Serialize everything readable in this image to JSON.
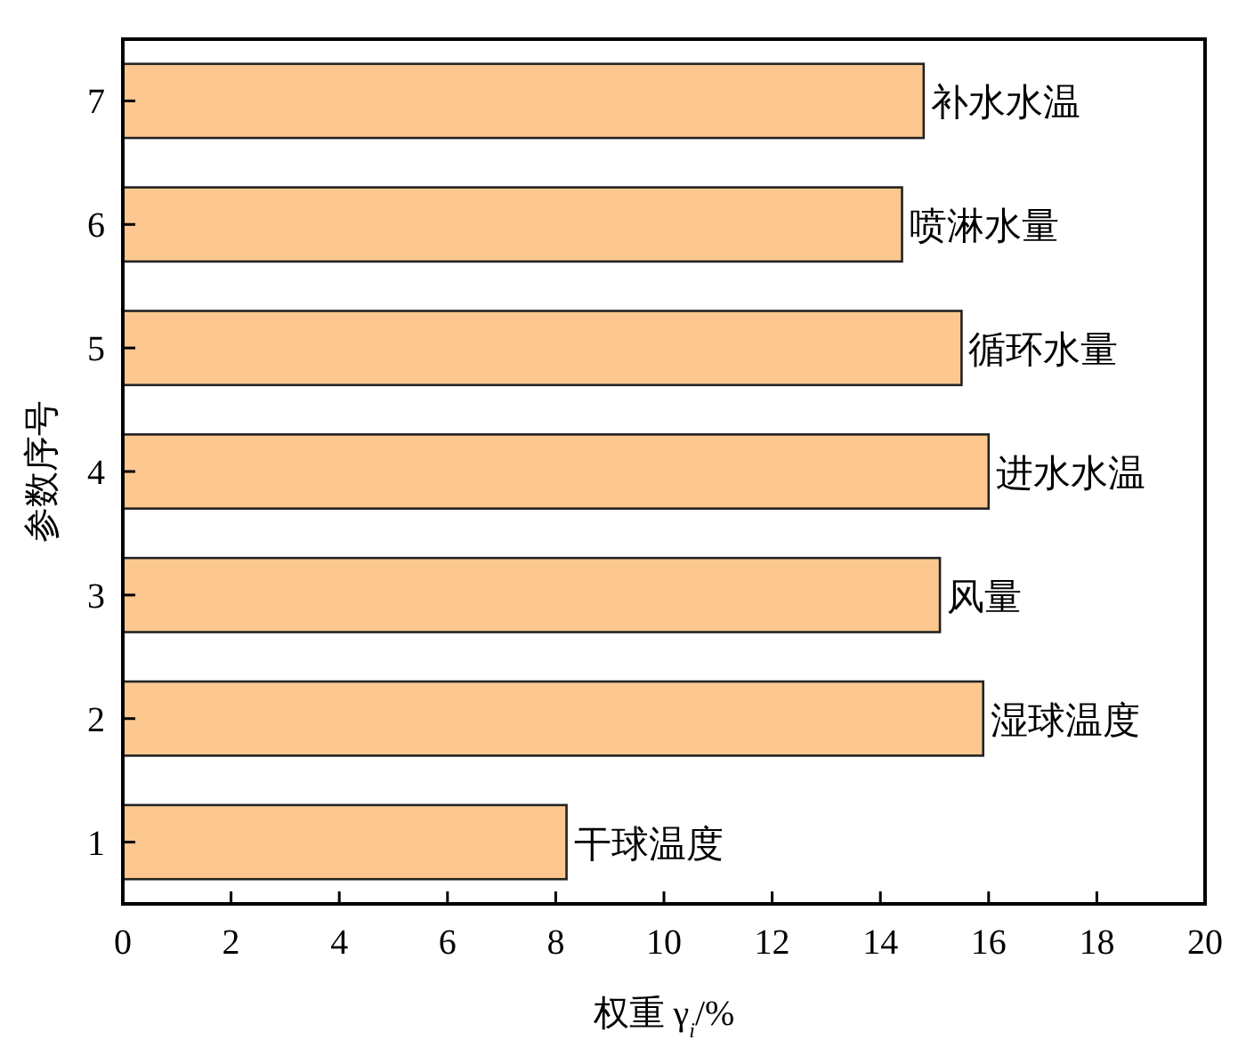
{
  "chart_data": {
    "type": "bar",
    "orientation": "horizontal",
    "xlabel": "权重 γ$_{i}$/%",
    "ylabel": "参数序号",
    "categories": [
      "7",
      "6",
      "5",
      "4",
      "3",
      "2",
      "1"
    ],
    "series": [
      {
        "color": "#fcc890",
        "values": [
          14.8,
          14.4,
          15.5,
          16.0,
          15.1,
          15.9,
          8.2
        ]
      }
    ],
    "xlim": [
      0,
      20
    ],
    "xticks": [
      0,
      2,
      4,
      6,
      8,
      10,
      12,
      14,
      16,
      18,
      20
    ],
    "annotations": [
      {
        "text": "补水水温",
        "x": 14.8,
        "y": "7"
      },
      {
        "text": "喷淋水量",
        "x": 14.4,
        "y": "6"
      },
      {
        "text": "循环水量",
        "x": 15.5,
        "y": "5"
      },
      {
        "text": "进水水温",
        "x": 16.0,
        "y": "4"
      },
      {
        "text": "风量",
        "x": 15.1,
        "y": "3"
      },
      {
        "text": "湿球温度",
        "x": 15.9,
        "y": "2"
      },
      {
        "text": "干球温度",
        "x": 8.2,
        "y": "1"
      }
    ]
  }
}
